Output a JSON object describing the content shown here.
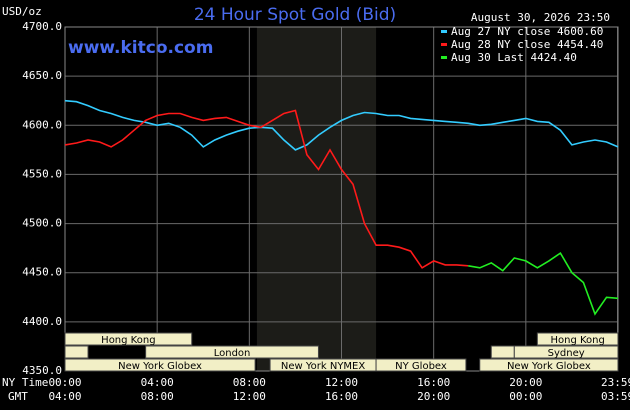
{
  "chart_data": {
    "type": "line",
    "title": "24 Hour Spot Gold (Bid)",
    "y_label": "USD/oz",
    "timestamp": "August 30, 2026 23:50",
    "watermark": "www.kitco.com",
    "ylim": [
      4350,
      4700
    ],
    "yticks": [
      {
        "value": 4350,
        "label": "4350.0"
      },
      {
        "value": 4400,
        "label": "4400.0"
      },
      {
        "value": 4450,
        "label": "4450.0"
      },
      {
        "value": 4500,
        "label": "4500.0"
      },
      {
        "value": 4550,
        "label": "4550.0"
      },
      {
        "value": 4600,
        "label": "4600.0"
      },
      {
        "value": 4650,
        "label": "4650.0"
      },
      {
        "value": 4700,
        "label": "4700.0"
      }
    ],
    "xlim": [
      0,
      24
    ],
    "xticks": [
      {
        "value": 0,
        "label": "00:00"
      },
      {
        "value": 4,
        "label": "04:00"
      },
      {
        "value": 8,
        "label": "08:00"
      },
      {
        "value": 12,
        "label": "12:00"
      },
      {
        "value": 16,
        "label": "16:00"
      },
      {
        "value": 20,
        "label": "20:00"
      },
      {
        "value": 23.98,
        "label": "23:59"
      }
    ],
    "x_row_label": "NY Time",
    "secondary_row_label": "GMT",
    "secondary_xtick_labels": [
      "04:00",
      "08:00",
      "12:00",
      "16:00",
      "20:00",
      "00:00",
      "03:59"
    ],
    "grid": true,
    "shaded_region": [
      8.33,
      13.5
    ],
    "x": [
      0,
      0.5,
      1,
      1.5,
      2,
      2.5,
      3,
      3.5,
      4,
      4.5,
      5,
      5.5,
      6,
      6.5,
      7,
      7.5,
      8,
      8.5,
      9,
      9.5,
      10,
      10.5,
      11,
      11.5,
      12,
      12.5,
      13,
      13.5,
      14,
      14.5,
      15,
      15.5,
      16,
      16.5,
      17,
      17.5,
      18,
      18.5,
      19,
      19.5,
      20,
      20.5,
      21,
      21.5,
      22,
      22.5,
      23,
      23.5,
      24
    ],
    "series": [
      {
        "name": "Aug 27 NY close 4600.60",
        "color": "#33ccff",
        "values": [
          4625,
          4624,
          4620,
          4615,
          4612,
          4608,
          4605,
          4603,
          4600,
          4602,
          4598,
          4590,
          4578,
          4585,
          4590,
          4594,
          4597,
          4598,
          4597,
          4585,
          4575,
          4580,
          4590,
          4598,
          4605,
          4610,
          4613,
          4612,
          4610,
          4610,
          4607,
          4606,
          4605,
          4604,
          4603,
          4602,
          4600,
          4601,
          4603,
          4605,
          4607,
          4604,
          4603,
          4595,
          4580,
          4583,
          4585,
          4583,
          4578
        ]
      },
      {
        "name": "Aug 28 NY close 4454.40",
        "color": "#ff1a1a",
        "values": [
          4580,
          4582,
          4585,
          4583,
          4578,
          4585,
          4595,
          4605,
          4610,
          4612,
          4612,
          4608,
          4605,
          4607,
          4608,
          4604,
          4600,
          4598,
          4605,
          4612,
          4615,
          4570,
          4555,
          4575,
          4555,
          4540,
          4500,
          4478,
          4478,
          4476,
          4472,
          4455,
          4462,
          4458,
          4458,
          4457,
          null,
          null,
          null,
          null,
          null,
          null,
          null,
          null,
          null,
          null,
          null,
          null,
          null
        ]
      },
      {
        "name": "Aug 30 Last 4424.40",
        "color": "#22ee22",
        "values": [
          null,
          null,
          null,
          null,
          null,
          null,
          null,
          null,
          null,
          null,
          null,
          null,
          null,
          null,
          null,
          null,
          null,
          null,
          null,
          null,
          null,
          null,
          null,
          null,
          null,
          null,
          null,
          null,
          null,
          null,
          null,
          null,
          null,
          null,
          null,
          4457,
          4455,
          4460,
          4452,
          4465,
          4462,
          4455,
          4462,
          4470,
          4450,
          4440,
          4408,
          4425,
          4424
        ]
      }
    ],
    "sessions": [
      {
        "label": "Hong Kong",
        "start": 0,
        "end": 5.5,
        "row": 0
      },
      {
        "label": "Hong Kong",
        "start": 20.5,
        "end": 24,
        "row": 0
      },
      {
        "start": 0,
        "end": 1,
        "row": 1
      },
      {
        "label": "London",
        "start": 3.5,
        "end": 11,
        "row": 1
      },
      {
        "start": 18.5,
        "end": 19.5,
        "row": 1
      },
      {
        "label": "Sydney",
        "start": 19.5,
        "end": 24,
        "row": 1
      },
      {
        "label": "New York Globex",
        "start": 0,
        "end": 8.25,
        "row": 2
      },
      {
        "label": "New York NYMEX",
        "start": 8.9,
        "end": 13.5,
        "row": 2
      },
      {
        "label": "NY Globex",
        "start": 13.5,
        "end": 17.4,
        "row": 2
      },
      {
        "label": "New York Globex",
        "start": 18,
        "end": 24,
        "row": 2
      }
    ]
  }
}
